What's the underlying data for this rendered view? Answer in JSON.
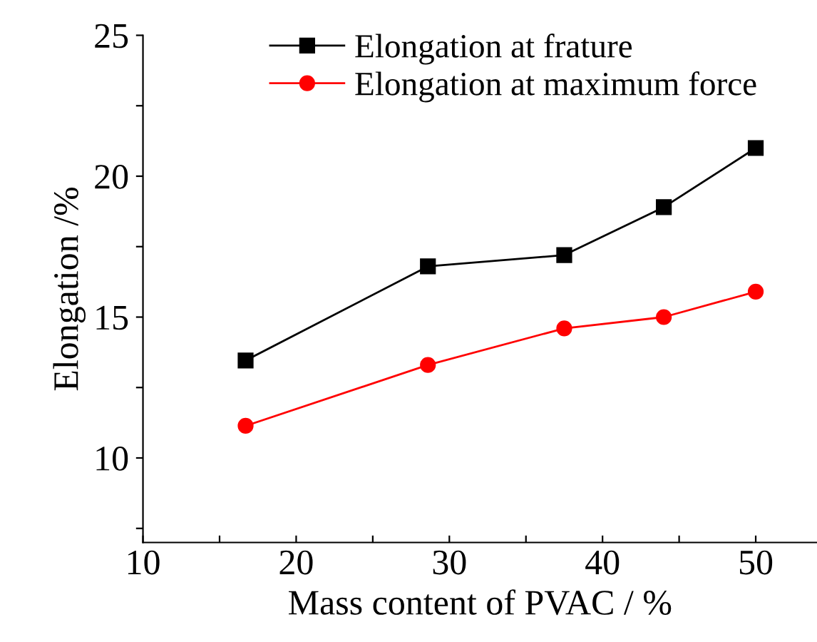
{
  "chart_data": {
    "type": "line",
    "xlabel": "Mass content of PVAC / %",
    "ylabel": "Elongation /%",
    "x": [
      16.7,
      28.6,
      37.5,
      44,
      50
    ],
    "series": [
      {
        "name": "Elongation at frature",
        "color": "#000000",
        "values": [
          13.46,
          16.8,
          17.2,
          18.9,
          21.0
        ],
        "marker": "square"
      },
      {
        "name": "Elongation at maximum force",
        "color": "#ff0000",
        "values": [
          11.14,
          13.3,
          14.6,
          15.0,
          15.9
        ],
        "marker": "circle"
      }
    ],
    "xlim": [
      10,
      54
    ],
    "ylim": [
      7,
      25
    ],
    "xticks": [
      10,
      {
        "value": 15,
        "label": null
      },
      20,
      {
        "value": 25,
        "label": null
      },
      30,
      {
        "value": 35,
        "label": null
      },
      40,
      {
        "value": 45,
        "label": null
      },
      50
    ],
    "yticks": [
      {
        "value": 7.5,
        "label": null
      },
      10,
      {
        "value": 12.5,
        "label": null
      },
      15,
      {
        "value": 17.5,
        "label": null
      },
      20,
      {
        "value": 22.5,
        "label": null
      },
      25
    ],
    "legend": "top",
    "grid": false,
    "line_style": "solid"
  }
}
